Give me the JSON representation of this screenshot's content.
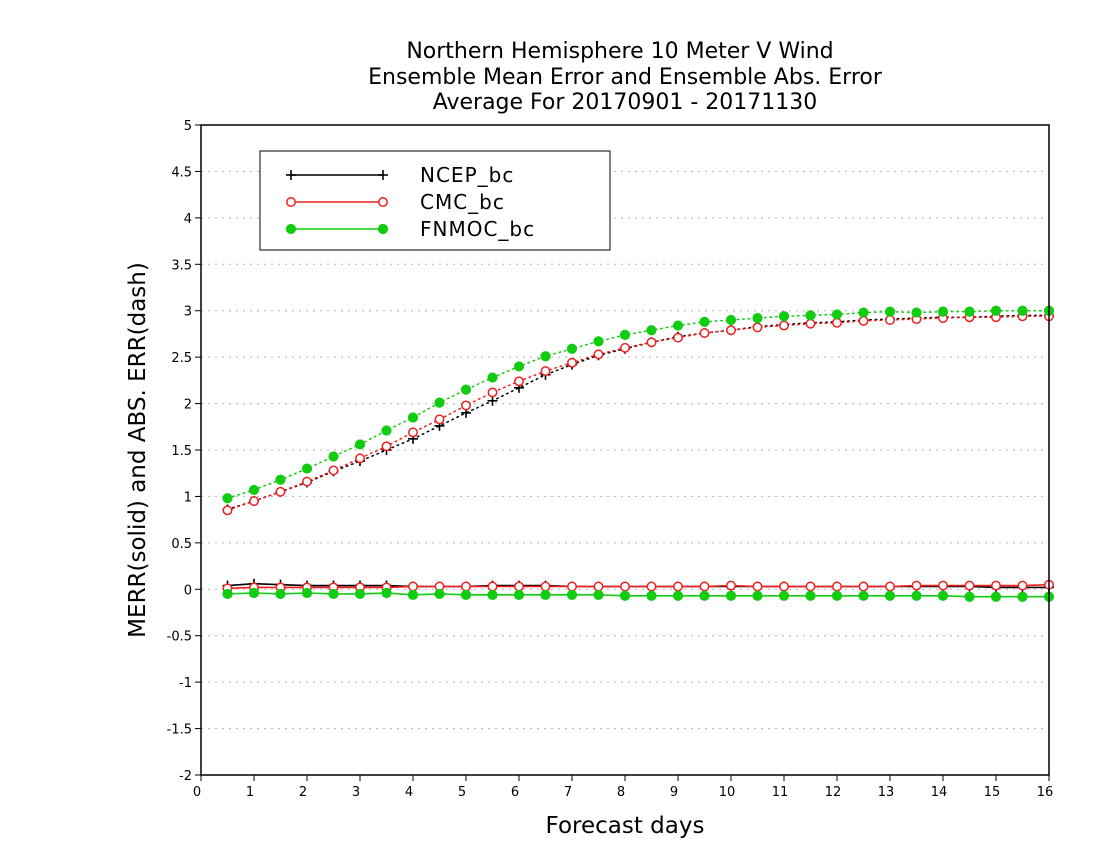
{
  "chart_data": {
    "type": "line",
    "title_lines": [
      "Northern Hemisphere 10 Meter V Wind",
      "Ensemble Mean Error and Ensemble Abs. Error",
      "Average For 20170901 - 20171130"
    ],
    "xlabel": "Forecast days",
    "ylabel": "MERR(solid) and ABS. ERR(dash)",
    "xlim": [
      0,
      16
    ],
    "ylim": [
      -2,
      5
    ],
    "xticks": [
      "0",
      "1",
      "2",
      "3",
      "4",
      "5",
      "6",
      "7",
      "8",
      "9",
      "10",
      "11",
      "12",
      "13",
      "14",
      "15",
      "16"
    ],
    "yticks": [
      "-2",
      "-1.5",
      "-1",
      "-0.5",
      "0",
      "0.5",
      "1",
      "1.5",
      "2",
      "2.5",
      "3",
      "3.5",
      "4",
      "4.5",
      "5"
    ],
    "grid": "horizontal-dotted",
    "legend_position": "top-left",
    "x": [
      0.5,
      1,
      1.5,
      2,
      2.5,
      3,
      3.5,
      4,
      4.5,
      5,
      5.5,
      6,
      6.5,
      7,
      7.5,
      8,
      8.5,
      9,
      9.5,
      10,
      10.5,
      11,
      11.5,
      12,
      12.5,
      13,
      13.5,
      14,
      14.5,
      15,
      15.5,
      16
    ],
    "series": [
      {
        "name": "NCEP_bc",
        "color": "#000000",
        "marker": "plus",
        "merr": [
          0.04,
          0.06,
          0.05,
          0.04,
          0.04,
          0.04,
          0.04,
          0.03,
          0.03,
          0.03,
          0.04,
          0.04,
          0.04,
          0.03,
          0.03,
          0.03,
          0.03,
          0.03,
          0.03,
          0.03,
          0.03,
          0.03,
          0.03,
          0.03,
          0.03,
          0.03,
          0.03,
          0.03,
          0.03,
          0.02,
          0.02,
          0.02
        ],
        "abs_err": [
          0.86,
          0.95,
          1.05,
          1.15,
          1.27,
          1.38,
          1.5,
          1.62,
          1.76,
          1.9,
          2.03,
          2.17,
          2.31,
          2.42,
          2.52,
          2.59,
          2.66,
          2.72,
          2.76,
          2.79,
          2.83,
          2.85,
          2.87,
          2.88,
          2.9,
          2.91,
          2.92,
          2.93,
          2.93,
          2.94,
          2.95,
          2.95
        ]
      },
      {
        "name": "CMC_bc",
        "color": "#ee2020",
        "marker": "open-circle",
        "merr": [
          0.01,
          0.02,
          0.02,
          0.02,
          0.02,
          0.02,
          0.02,
          0.03,
          0.03,
          0.03,
          0.03,
          0.03,
          0.03,
          0.03,
          0.03,
          0.03,
          0.03,
          0.03,
          0.03,
          0.04,
          0.03,
          0.03,
          0.03,
          0.03,
          0.03,
          0.03,
          0.04,
          0.04,
          0.04,
          0.04,
          0.04,
          0.05
        ],
        "abs_err": [
          0.85,
          0.95,
          1.05,
          1.16,
          1.28,
          1.41,
          1.54,
          1.69,
          1.83,
          1.98,
          2.12,
          2.24,
          2.35,
          2.44,
          2.53,
          2.6,
          2.66,
          2.71,
          2.76,
          2.79,
          2.82,
          2.84,
          2.86,
          2.87,
          2.89,
          2.9,
          2.91,
          2.92,
          2.93,
          2.93,
          2.94,
          2.94
        ]
      },
      {
        "name": "FNMOC_bc",
        "color": "#11cc11",
        "marker": "filled-circle",
        "merr": [
          -0.05,
          -0.04,
          -0.05,
          -0.04,
          -0.05,
          -0.05,
          -0.04,
          -0.06,
          -0.05,
          -0.06,
          -0.06,
          -0.06,
          -0.06,
          -0.06,
          -0.06,
          -0.07,
          -0.07,
          -0.07,
          -0.07,
          -0.07,
          -0.07,
          -0.07,
          -0.07,
          -0.07,
          -0.07,
          -0.07,
          -0.07,
          -0.07,
          -0.08,
          -0.08,
          -0.08,
          -0.08
        ],
        "abs_err": [
          0.98,
          1.07,
          1.18,
          1.3,
          1.43,
          1.56,
          1.71,
          1.85,
          2.01,
          2.15,
          2.28,
          2.4,
          2.51,
          2.59,
          2.67,
          2.74,
          2.79,
          2.84,
          2.88,
          2.9,
          2.92,
          2.94,
          2.95,
          2.96,
          2.98,
          2.99,
          2.98,
          2.99,
          2.99,
          3.0,
          3.0,
          3.0
        ]
      }
    ]
  }
}
